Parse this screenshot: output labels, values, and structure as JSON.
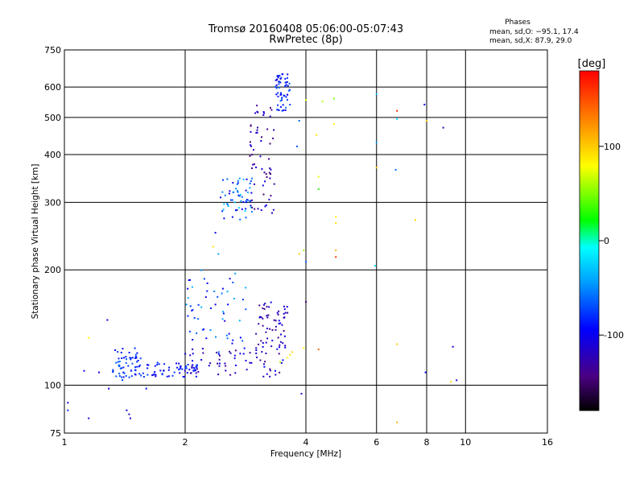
{
  "chart_data": {
    "type": "scatter",
    "title": "Tromsø 20160408 05:06:00-05:07:43",
    "subtitle": "RwPretec (8p)",
    "xlabel": "Frequency [MHz]",
    "ylabel": "Stationary phase Virtual Height [km]",
    "x_scale": "log",
    "y_scale": "log",
    "xlim": [
      1,
      16
    ],
    "ylim": [
      75,
      750
    ],
    "x_ticks": [
      1,
      2,
      4,
      6,
      8,
      10,
      16
    ],
    "y_ticks": [
      75,
      100,
      200,
      300,
      400,
      500,
      600,
      750
    ],
    "grid": true,
    "stats_header": "Phases",
    "stats_o": "mean, sd,O: −95.1, 17.4",
    "stats_x": "mean, sd,X:  87.9, 29.0",
    "colorbar": {
      "label": "[deg]",
      "range": [
        -180,
        180
      ],
      "ticks": [
        100,
        0,
        -100
      ]
    },
    "clusters": [
      {
        "freq_range": [
          1.32,
          1.55
        ],
        "height_range": [
          103,
          125
        ],
        "phase_range": [
          -100,
          -60
        ]
      },
      {
        "freq_range": [
          1.55,
          2.15
        ],
        "height_range": [
          105,
          115
        ],
        "phase_range": [
          -110,
          -70
        ]
      },
      {
        "freq_range": [
          2.05,
          3.55
        ],
        "height_range": [
          105,
          125
        ],
        "phase_range": [
          -140,
          -90
        ]
      },
      {
        "freq_range": [
          3.0,
          3.6
        ],
        "height_range": [
          125,
          165
        ],
        "phase_range": [
          -150,
          -100
        ]
      },
      {
        "freq_range": [
          2.0,
          2.9
        ],
        "height_range": [
          120,
          200
        ],
        "phase_range": [
          -110,
          -30
        ]
      },
      {
        "freq_range": [
          2.45,
          2.95
        ],
        "height_range": [
          270,
          350
        ],
        "phase_range": [
          -110,
          -20
        ]
      },
      {
        "freq_range": [
          2.9,
          3.35
        ],
        "height_range": [
          280,
          550
        ],
        "phase_range": [
          -150,
          -100
        ]
      },
      {
        "freq_range": [
          3.35,
          3.65
        ],
        "height_range": [
          520,
          650
        ],
        "phase_range": [
          -110,
          -60
        ]
      }
    ],
    "scattered_points": [
      {
        "x": 3.65,
        "y": 120,
        "phase": 90
      },
      {
        "x": 3.7,
        "y": 122,
        "phase": 95
      },
      {
        "x": 3.6,
        "y": 118,
        "phase": 85
      },
      {
        "x": 3.45,
        "y": 115,
        "phase": 60
      },
      {
        "x": 4.0,
        "y": 555,
        "phase": 70
      },
      {
        "x": 4.4,
        "y": 550,
        "phase": 60
      },
      {
        "x": 4.7,
        "y": 560,
        "phase": 50
      },
      {
        "x": 4.7,
        "y": 480,
        "phase": 80
      },
      {
        "x": 4.25,
        "y": 450,
        "phase": 90
      },
      {
        "x": 3.85,
        "y": 490,
        "phase": -60
      },
      {
        "x": 3.8,
        "y": 420,
        "phase": -70
      },
      {
        "x": 4.3,
        "y": 350,
        "phase": 75
      },
      {
        "x": 4.3,
        "y": 325,
        "phase": 30
      },
      {
        "x": 4.75,
        "y": 275,
        "phase": 85
      },
      {
        "x": 4.75,
        "y": 265,
        "phase": 95
      },
      {
        "x": 4.75,
        "y": 225,
        "phase": 110
      },
      {
        "x": 4.75,
        "y": 216,
        "phase": 160
      },
      {
        "x": 3.95,
        "y": 225,
        "phase": 60
      },
      {
        "x": 3.85,
        "y": 220,
        "phase": 100
      },
      {
        "x": 4.0,
        "y": 210,
        "phase": -60
      },
      {
        "x": 4.0,
        "y": 165,
        "phase": -140
      },
      {
        "x": 3.9,
        "y": 95,
        "phase": -120
      },
      {
        "x": 3.95,
        "y": 125,
        "phase": 80
      },
      {
        "x": 4.3,
        "y": 124,
        "phase": 140
      },
      {
        "x": 6.0,
        "y": 575,
        "phase": -30
      },
      {
        "x": 6.0,
        "y": 430,
        "phase": -40
      },
      {
        "x": 6.0,
        "y": 370,
        "phase": 110
      },
      {
        "x": 5.95,
        "y": 205,
        "phase": -20
      },
      {
        "x": 6.75,
        "y": 520,
        "phase": 165
      },
      {
        "x": 6.75,
        "y": 495,
        "phase": -20
      },
      {
        "x": 6.7,
        "y": 365,
        "phase": -60
      },
      {
        "x": 7.5,
        "y": 270,
        "phase": 95
      },
      {
        "x": 6.75,
        "y": 128,
        "phase": 100
      },
      {
        "x": 6.75,
        "y": 80,
        "phase": 110
      },
      {
        "x": 7.9,
        "y": 540,
        "phase": -100
      },
      {
        "x": 8.0,
        "y": 490,
        "phase": 100
      },
      {
        "x": 8.8,
        "y": 470,
        "phase": -130
      },
      {
        "x": 7.95,
        "y": 108,
        "phase": -100
      },
      {
        "x": 9.3,
        "y": 126,
        "phase": -110
      },
      {
        "x": 9.5,
        "y": 103,
        "phase": -110
      },
      {
        "x": 9.2,
        "y": 102,
        "phase": 95
      },
      {
        "x": 1.15,
        "y": 133,
        "phase": 80
      },
      {
        "x": 1.28,
        "y": 148,
        "phase": -100
      },
      {
        "x": 1.12,
        "y": 109,
        "phase": -100
      },
      {
        "x": 1.22,
        "y": 108,
        "phase": -110
      },
      {
        "x": 1.29,
        "y": 98,
        "phase": -100
      },
      {
        "x": 1.02,
        "y": 90,
        "phase": -100
      },
      {
        "x": 1.02,
        "y": 86,
        "phase": -80
      },
      {
        "x": 1.15,
        "y": 82,
        "phase": -120
      },
      {
        "x": 1.45,
        "y": 84,
        "phase": -120
      },
      {
        "x": 1.46,
        "y": 82,
        "phase": -110
      },
      {
        "x": 1.43,
        "y": 86,
        "phase": -100
      },
      {
        "x": 1.6,
        "y": 98,
        "phase": -90
      },
      {
        "x": 2.38,
        "y": 250,
        "phase": -100
      },
      {
        "x": 2.35,
        "y": 230,
        "phase": 90
      },
      {
        "x": 2.42,
        "y": 220,
        "phase": -40
      }
    ]
  }
}
